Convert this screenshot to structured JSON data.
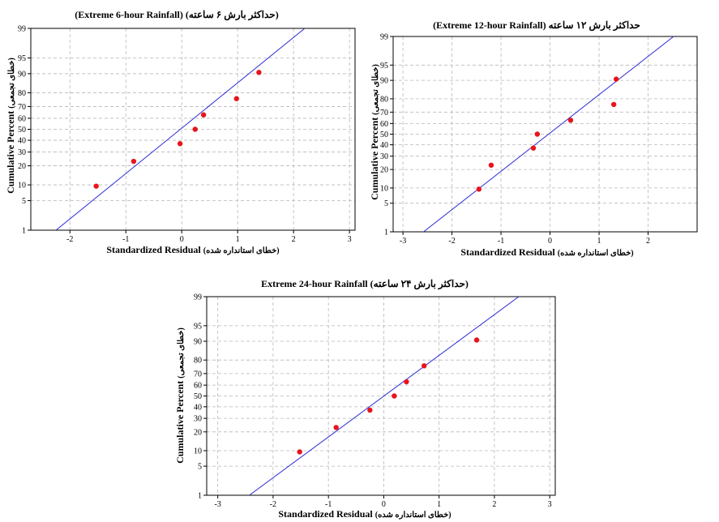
{
  "chart_data": [
    {
      "type": "scatter",
      "title": "(Extreme 6-hour Rainfall)",
      "title_fa": "(حداکثر بارش ۶ ساعته)",
      "xlabel": "Standardized Residual",
      "xlabel_fa": "(خطای استانداره شده)",
      "ylabel": "Cumulative Percent",
      "ylabel_fa": "(خطای تجمعی)",
      "y_scale": "normal-probability",
      "grid": true,
      "xlim": [
        -2.7,
        3.1
      ],
      "ylim": [
        1,
        99
      ],
      "x_ticks": [
        "-2",
        "-1",
        "0",
        "1",
        "2",
        "3"
      ],
      "x_tick_values": [
        -2,
        -1,
        0,
        1,
        2,
        3
      ],
      "y_ticks": [
        "1",
        "5",
        "10",
        "20",
        "30",
        "40",
        "50",
        "60",
        "70",
        "80",
        "90",
        "95",
        "99"
      ],
      "points": [
        {
          "x": -1.53,
          "y": 9.5
        },
        {
          "x": -0.86,
          "y": 23
        },
        {
          "x": -0.03,
          "y": 37
        },
        {
          "x": 0.24,
          "y": 50
        },
        {
          "x": 0.39,
          "y": 63
        },
        {
          "x": 0.98,
          "y": 76
        },
        {
          "x": 1.38,
          "y": 90.5
        }
      ],
      "fit_line": {
        "x1": -2.25,
        "y1": 1,
        "x2": 2.2,
        "y2": 99
      },
      "marker_color": "#e8141b",
      "line_color": "#2b2bd6"
    },
    {
      "type": "scatter",
      "title": "(Extreme 12-hour Rainfall)",
      "title_fa": "حداکثر بارش ۱۲ ساعته",
      "xlabel": "Standardized Residual",
      "xlabel_fa": "(خطای استانداره شده)",
      "ylabel": "Cumulative Percent",
      "ylabel_fa": "(خطای تجمعی)",
      "y_scale": "normal-probability",
      "grid": true,
      "xlim": [
        -3.2,
        3.0
      ],
      "ylim": [
        1,
        99
      ],
      "x_ticks": [
        "-3",
        "-2",
        "-1",
        "0",
        "1",
        "2"
      ],
      "x_tick_values": [
        -3,
        -2,
        -1,
        0,
        1,
        2
      ],
      "y_ticks": [
        "1",
        "5",
        "10",
        "20",
        "30",
        "40",
        "50",
        "60",
        "70",
        "80",
        "90",
        "95",
        "99"
      ],
      "points": [
        {
          "x": -1.45,
          "y": 9.5
        },
        {
          "x": -1.2,
          "y": 23
        },
        {
          "x": -0.34,
          "y": 37
        },
        {
          "x": -0.26,
          "y": 50
        },
        {
          "x": 0.42,
          "y": 63
        },
        {
          "x": 1.3,
          "y": 76
        },
        {
          "x": 1.35,
          "y": 90.5
        }
      ],
      "fit_line": {
        "x1": -2.58,
        "y1": 1,
        "x2": 2.52,
        "y2": 99
      },
      "marker_color": "#e8141b",
      "line_color": "#2b2bd6"
    },
    {
      "type": "scatter",
      "title": "Extreme 24-hour Rainfall",
      "title_fa": "(حداکثر بارش ۲۴ ساعته)",
      "xlabel": "Standardized Residual",
      "xlabel_fa": "(خطای استانداره شده)",
      "ylabel": "Cumulative Percent",
      "ylabel_fa": "(خطای تجمعی)",
      "y_scale": "normal-probability",
      "grid": true,
      "xlim": [
        -3.2,
        3.1
      ],
      "ylim": [
        1,
        99
      ],
      "x_ticks": [
        "-3",
        "-2",
        "-1",
        "0",
        "1",
        "2",
        "3"
      ],
      "x_tick_values": [
        -3,
        -2,
        -1,
        0,
        1,
        2,
        3
      ],
      "y_ticks": [
        "1",
        "5",
        "10",
        "20",
        "30",
        "40",
        "50",
        "60",
        "70",
        "80",
        "90",
        "95",
        "99"
      ],
      "points": [
        {
          "x": -1.52,
          "y": 9.5
        },
        {
          "x": -0.86,
          "y": 23
        },
        {
          "x": -0.25,
          "y": 37
        },
        {
          "x": 0.19,
          "y": 50
        },
        {
          "x": 0.41,
          "y": 63
        },
        {
          "x": 0.73,
          "y": 76
        },
        {
          "x": 1.68,
          "y": 90.5
        }
      ],
      "fit_line": {
        "x1": -2.43,
        "y1": 1,
        "x2": 2.44,
        "y2": 99
      },
      "marker_color": "#e8141b",
      "line_color": "#2b2bd6"
    }
  ]
}
